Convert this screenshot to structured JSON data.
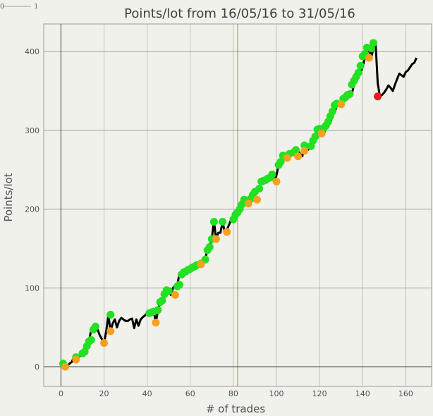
{
  "chart_data": {
    "type": "line",
    "title": "Points/lot from 16/05/16 to 31/05/16",
    "xlabel": "# of trades",
    "ylabel": "Points/lot",
    "xlim": [
      -8,
      172
    ],
    "ylim": [
      -25,
      435
    ],
    "xticks": [
      0,
      20,
      40,
      60,
      80,
      100,
      120,
      140,
      160
    ],
    "yticks": [
      0,
      100,
      200,
      300,
      400
    ],
    "marker_line_x": 82,
    "grid": true,
    "legend": "none",
    "corner_labels": [
      "0",
      "1"
    ],
    "colors": {
      "background": "#f1f1ec",
      "line": "#000000",
      "high": "#22e022",
      "low": "#f5a01e",
      "last": "#f01a1a",
      "marker_line": "#e06060",
      "grid": "#c0c0c0",
      "axis": "#404040"
    },
    "x": [
      1,
      2,
      3,
      4,
      5,
      6,
      7,
      8,
      9,
      10,
      11,
      12,
      13,
      14,
      15,
      16,
      17,
      18,
      19,
      20,
      21,
      22,
      23,
      24,
      25,
      26,
      27,
      28,
      29,
      30,
      31,
      32,
      33,
      34,
      35,
      36,
      37,
      38,
      39,
      40,
      41,
      42,
      43,
      44,
      45,
      46,
      47,
      48,
      49,
      50,
      51,
      52,
      53,
      54,
      55,
      56,
      57,
      58,
      59,
      60,
      61,
      62,
      63,
      64,
      65,
      66,
      67,
      68,
      69,
      70,
      71,
      72,
      73,
      74,
      75,
      76,
      77,
      78,
      79,
      80,
      81,
      82,
      83,
      84,
      85,
      86,
      87,
      88,
      89,
      90,
      91,
      92,
      93,
      94,
      95,
      96,
      97,
      98,
      99,
      100,
      101,
      102,
      103,
      104,
      105,
      106,
      107,
      108,
      109,
      110,
      111,
      112,
      113,
      114,
      115,
      116,
      117,
      118,
      119,
      120,
      121,
      122,
      123,
      124,
      125,
      126,
      127,
      128,
      129,
      130,
      131,
      132,
      133,
      134,
      135,
      136,
      137,
      138,
      139,
      140,
      141,
      142,
      143,
      144,
      145,
      146,
      147,
      148,
      149,
      150,
      151,
      152,
      153,
      154,
      155,
      156,
      157,
      158,
      159,
      160,
      161,
      162,
      163,
      164,
      165
    ],
    "y": [
      4,
      0,
      1,
      4,
      6,
      12,
      9,
      12,
      14,
      16,
      19,
      26,
      33,
      46,
      51,
      48,
      47,
      40,
      35,
      30,
      45,
      66,
      45,
      55,
      60,
      50,
      58,
      62,
      60,
      58,
      58,
      60,
      61,
      49,
      60,
      52,
      60,
      63,
      65,
      69,
      69,
      70,
      72,
      56,
      71,
      82,
      85,
      92,
      98,
      96,
      91,
      100,
      103,
      104,
      118,
      120,
      121,
      123,
      124,
      126,
      126,
      128,
      130,
      130,
      132,
      135,
      137,
      149,
      152,
      162,
      185,
      162,
      170,
      170,
      184,
      171,
      174,
      180,
      187,
      193,
      197,
      200,
      206,
      212,
      212,
      209,
      207,
      215,
      212,
      218,
      222,
      225,
      235,
      236,
      237,
      240,
      240,
      244,
      234,
      243,
      256,
      260,
      268,
      266,
      265,
      270,
      270,
      274,
      272,
      274,
      270,
      267,
      280,
      274,
      276,
      280,
      282,
      288,
      292,
      300,
      302,
      296,
      302,
      306,
      310,
      318,
      324,
      330,
      333,
      332,
      340,
      342,
      345,
      344,
      346,
      358,
      362,
      368,
      374,
      380,
      392,
      396,
      405,
      392,
      404,
      410,
      360,
      343,
      345,
      348,
      352,
      357,
      354,
      350,
      358,
      365,
      372,
      370,
      368,
      374,
      376,
      380,
      384,
      386,
      392
    ],
    "high_points": [
      [
        1,
        4
      ],
      [
        7,
        12
      ],
      [
        10,
        17
      ],
      [
        11,
        19
      ],
      [
        12,
        26
      ],
      [
        13,
        32
      ],
      [
        14,
        34
      ],
      [
        15,
        47
      ],
      [
        16,
        51
      ],
      [
        23,
        66
      ],
      [
        41,
        68
      ],
      [
        42,
        69
      ],
      [
        43,
        70
      ],
      [
        45,
        72
      ],
      [
        46,
        82
      ],
      [
        47,
        84
      ],
      [
        48,
        92
      ],
      [
        49,
        97
      ],
      [
        50,
        96
      ],
      [
        54,
        102
      ],
      [
        55,
        104
      ],
      [
        56,
        117
      ],
      [
        57,
        120
      ],
      [
        58,
        121
      ],
      [
        59,
        123
      ],
      [
        60,
        124
      ],
      [
        61,
        126
      ],
      [
        62,
        127
      ],
      [
        63,
        129
      ],
      [
        65,
        131
      ],
      [
        67,
        136
      ],
      [
        68,
        148
      ],
      [
        69,
        152
      ],
      [
        70,
        162
      ],
      [
        71,
        184
      ],
      [
        75,
        184
      ],
      [
        80,
        187
      ],
      [
        81,
        193
      ],
      [
        82,
        196
      ],
      [
        83,
        200
      ],
      [
        84,
        206
      ],
      [
        85,
        212
      ],
      [
        88,
        213
      ],
      [
        89,
        218
      ],
      [
        90,
        222
      ],
      [
        92,
        226
      ],
      [
        93,
        235
      ],
      [
        94,
        236
      ],
      [
        95,
        237
      ],
      [
        96,
        239
      ],
      [
        97,
        240
      ],
      [
        98,
        244
      ],
      [
        101,
        256
      ],
      [
        102,
        260
      ],
      [
        103,
        268
      ],
      [
        104,
        267
      ],
      [
        106,
        270
      ],
      [
        108,
        272
      ],
      [
        109,
        275
      ],
      [
        113,
        281
      ],
      [
        116,
        280
      ],
      [
        117,
        287
      ],
      [
        118,
        292
      ],
      [
        119,
        301
      ],
      [
        120,
        302
      ],
      [
        122,
        303
      ],
      [
        123,
        306
      ],
      [
        124,
        311
      ],
      [
        125,
        318
      ],
      [
        126,
        324
      ],
      [
        127,
        332
      ],
      [
        128,
        334
      ],
      [
        131,
        340
      ],
      [
        132,
        342
      ],
      [
        133,
        345
      ],
      [
        134,
        346
      ],
      [
        135,
        358
      ],
      [
        136,
        363
      ],
      [
        137,
        368
      ],
      [
        138,
        373
      ],
      [
        139,
        382
      ],
      [
        140,
        394
      ],
      [
        141,
        397
      ],
      [
        142,
        405
      ],
      [
        144,
        404
      ],
      [
        145,
        411
      ]
    ],
    "low_points": [
      [
        2,
        0
      ],
      [
        7,
        9
      ],
      [
        20,
        30
      ],
      [
        23,
        45
      ],
      [
        44,
        56
      ],
      [
        53,
        91
      ],
      [
        65,
        130
      ],
      [
        72,
        162
      ],
      [
        77,
        171
      ],
      [
        87,
        207
      ],
      [
        91,
        212
      ],
      [
        100,
        235
      ],
      [
        105,
        265
      ],
      [
        110,
        267
      ],
      [
        113,
        274
      ],
      [
        121,
        296
      ],
      [
        130,
        333
      ],
      [
        143,
        392
      ]
    ],
    "last_point": [
      147,
      343
    ]
  }
}
